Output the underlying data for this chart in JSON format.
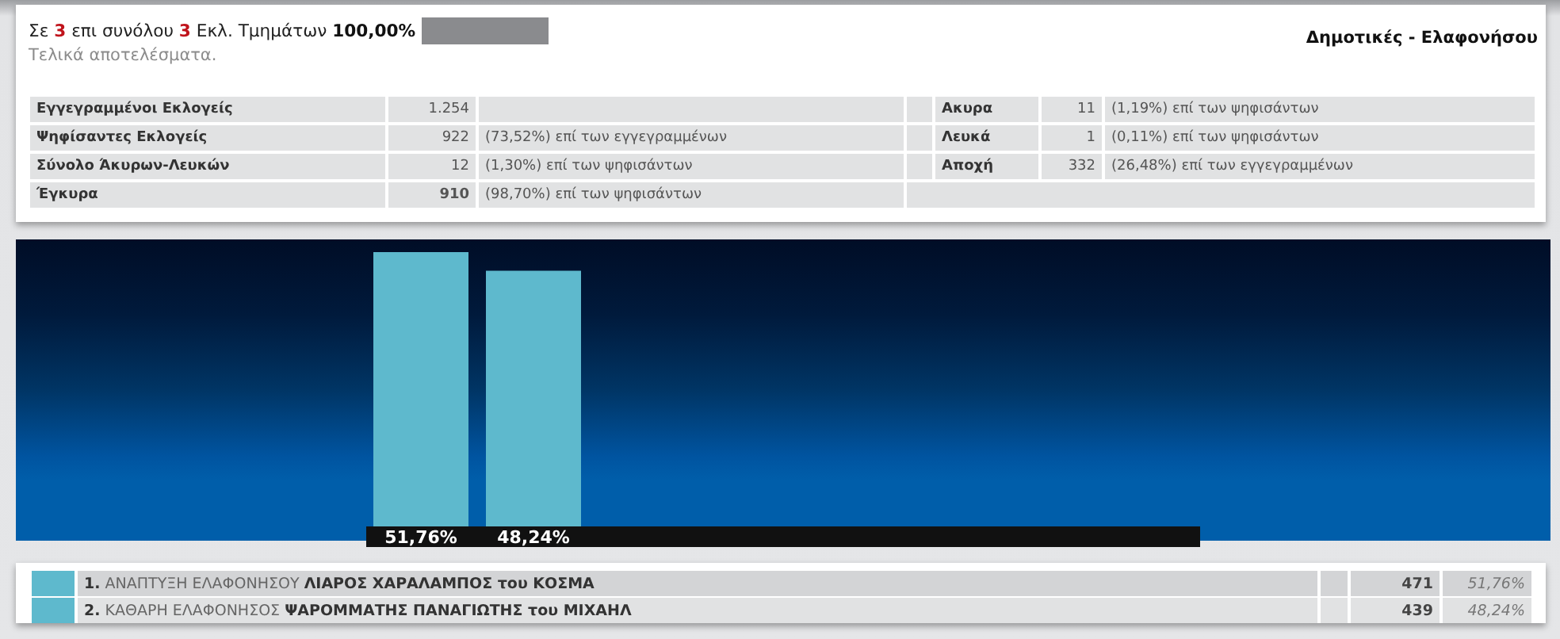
{
  "chart_data": {
    "type": "bar",
    "title": "Δημοτικές - Ελαφονήσου",
    "subtitle": "Τελικά αποτελέσματα.",
    "categories": [
      null
    ],
    "series": [
      {
        "name": "1. ΑΝΑΠΤΥΞΗ ΕΛΑΦΟΝΗΣΟΥ ΛΙΑΡΟΣ ΧΑΡΑΛΑΜΠΟΣ του ΚΟΣΜΑ",
        "color": "#5eb9cd",
        "values": [
          51.76
        ],
        "value_labels": [
          "51,76%"
        ]
      },
      {
        "name": "2. ΚΑΘΑΡΗ ΕΛΑΦΟΝΗΣΟΣ ΨΑΡΟΜΜΑΤΗΣ ΠΑΝΑΓΙΩΤΗΣ του ΜΙΧΑΗΛ",
        "color": "#5eb9cd",
        "values": [
          48.24
        ],
        "value_labels": [
          "48,24%"
        ]
      }
    ],
    "legend": "bottom",
    "tick_labels": false,
    "annotations": [
      "Σε 3 επι συνόλου 3 Εκλ. Τμημάτων 100,00%",
      "Εγγεγραμμένοι Εκλογείς",
      "1.254",
      "Ψηφίσαντες Εκλογείς",
      "922",
      "(73,52%) επί των εγγεγραμμένων",
      "Σύνολο Άκυρων-Λευκών",
      "12",
      "(1,30%) επί των ψηφισάντων",
      "Έγκυρα",
      "910",
      "(98,70%) επί των ψηφισάντων",
      "Ακυρα",
      "11",
      "(1,19%) επί των ψηφισάντων",
      "Λευκά",
      "1",
      "(0,11%) επί των ψηφισάντων",
      "Αποχή",
      "332",
      "(26,48%) επί των εγγεγραμμένων",
      "471",
      "439"
    ]
  }
}
